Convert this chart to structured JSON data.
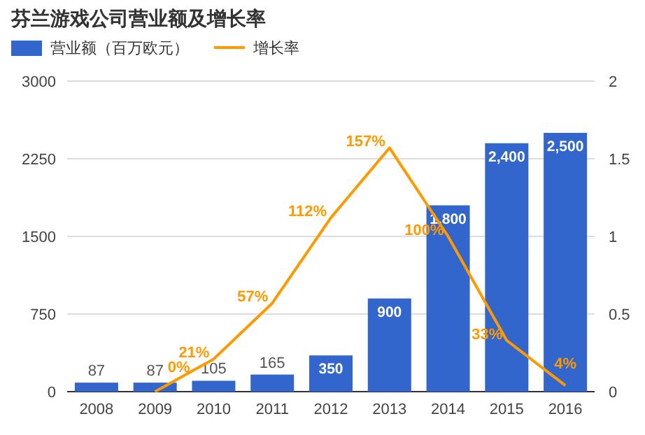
{
  "chart_data": {
    "type": "bar",
    "title": "芬兰游戏公司营业额及增长率",
    "categories": [
      "2008",
      "2009",
      "2010",
      "2011",
      "2012",
      "2013",
      "2014",
      "2015",
      "2016"
    ],
    "series": [
      {
        "name": "营业额（百万欧元）",
        "color": "#3366cc",
        "values": [
          87,
          87,
          105,
          165,
          350,
          900,
          1800,
          2400,
          2500
        ],
        "value_labels": [
          "87",
          "87",
          "105",
          "165",
          "350",
          "900",
          "1,800",
          "2,400",
          "2,500"
        ]
      },
      {
        "name": "增长率",
        "type": "line",
        "axis": "y2",
        "color": "#ff9900",
        "values": [
          null,
          0,
          0.21,
          0.57,
          1.12,
          1.57,
          1.0,
          0.33,
          0.04
        ],
        "value_labels": [
          null,
          "0%",
          "21%",
          "57%",
          "112%",
          "157%",
          "100%",
          "33%",
          "4%"
        ]
      }
    ],
    "ylim": [
      0,
      3000
    ],
    "yticks": [
      0,
      750,
      1500,
      2250,
      3000
    ],
    "y2lim": [
      0,
      2
    ],
    "y2ticks": [
      0,
      0.5,
      1,
      1.5,
      2
    ],
    "grid": "y",
    "legend": "top left",
    "marker": "none",
    "line_style": "solid"
  }
}
